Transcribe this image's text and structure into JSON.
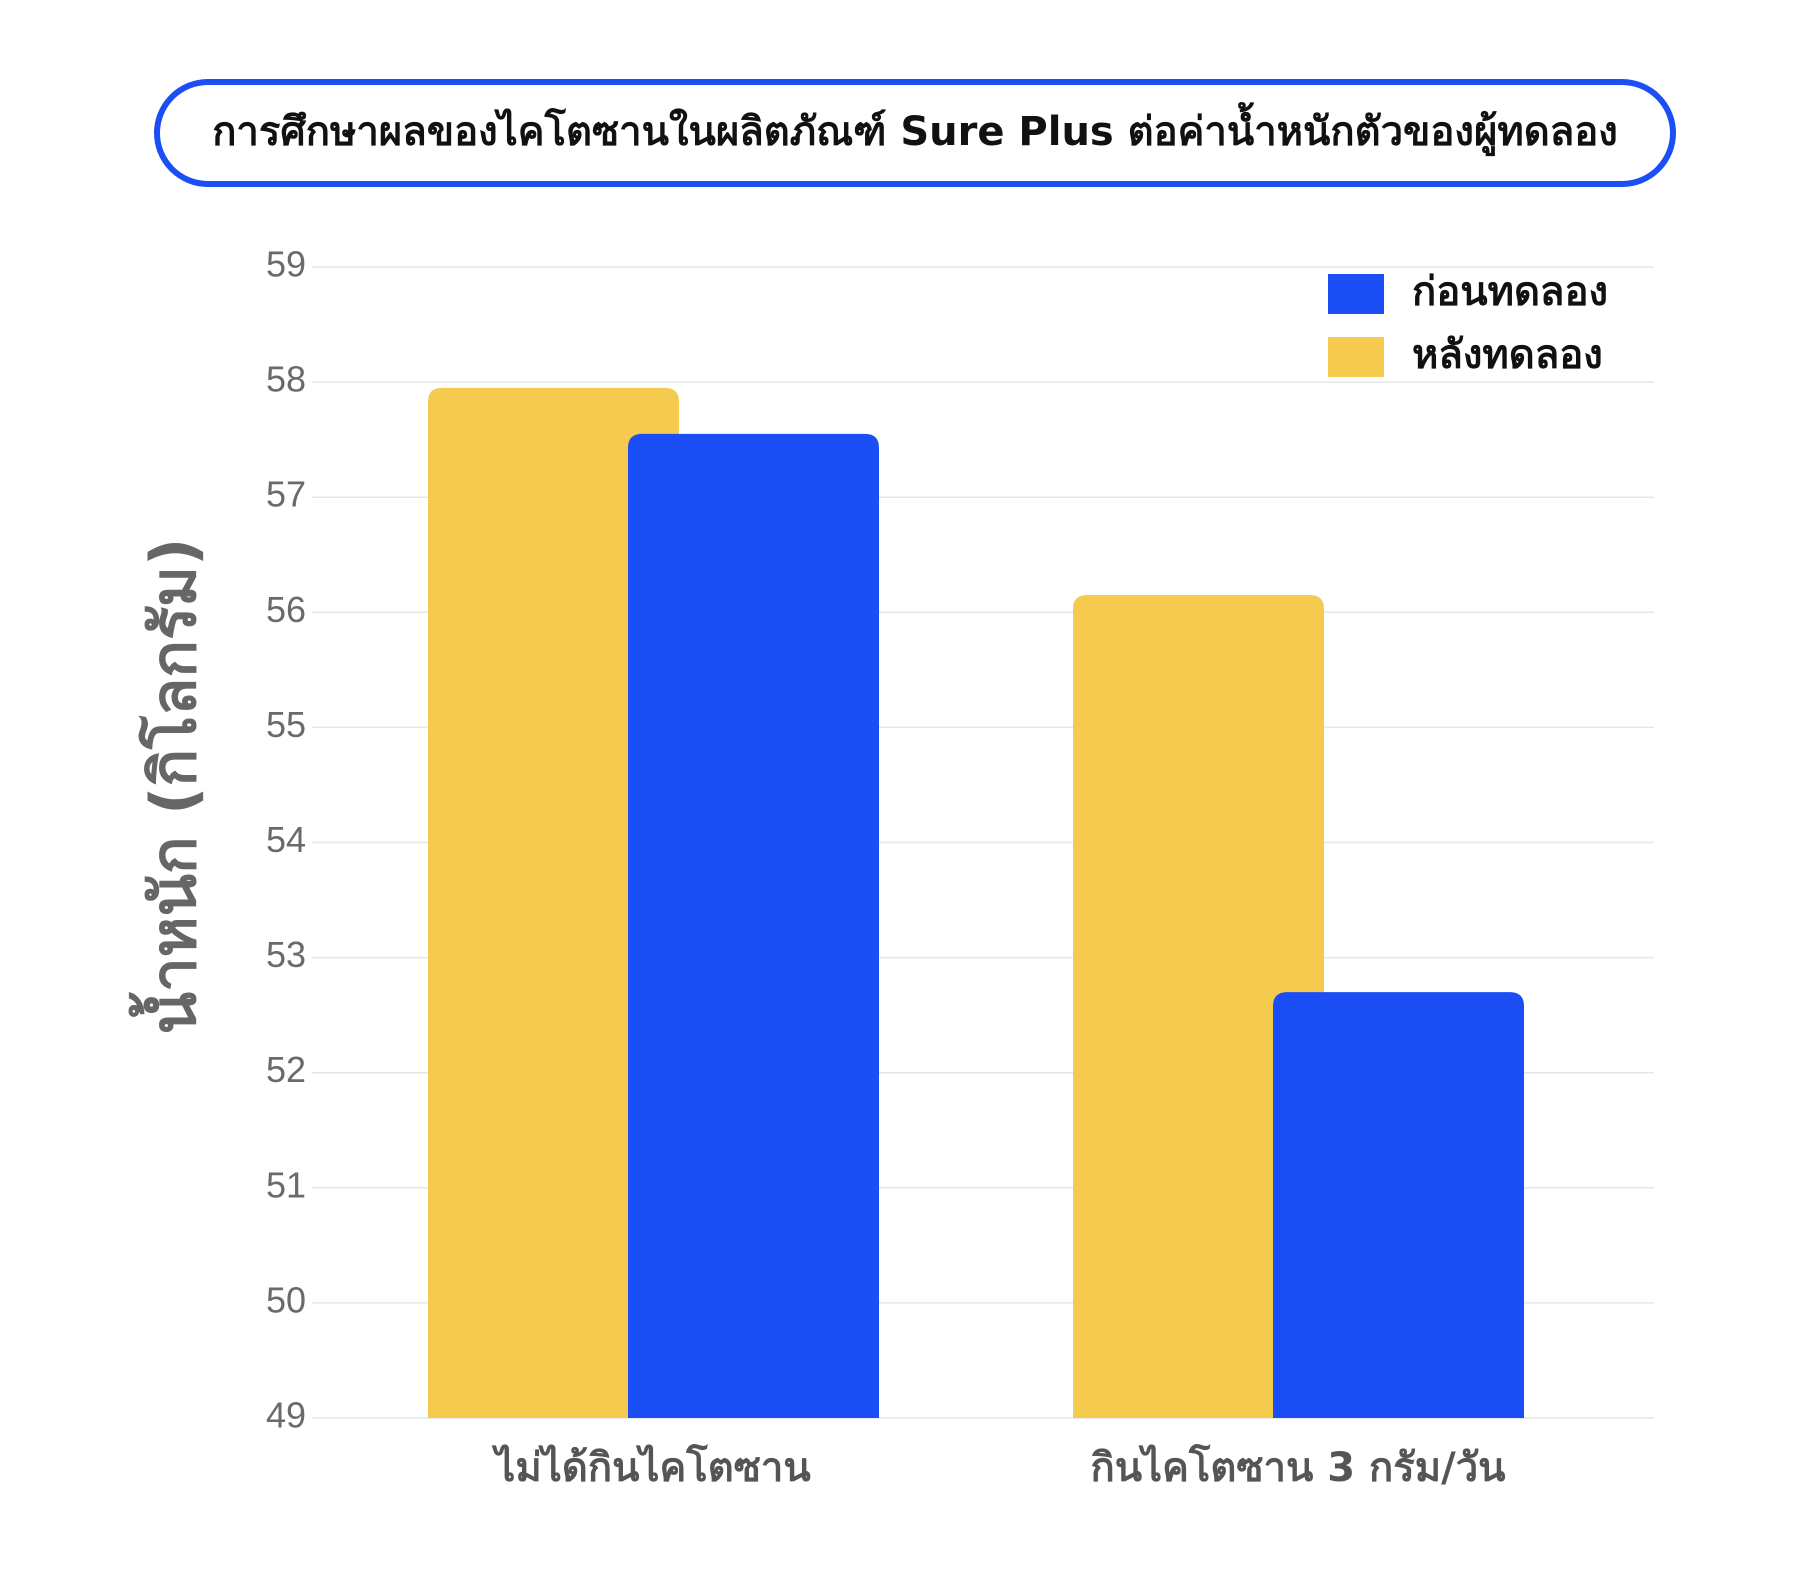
{
  "chart_data": {
    "type": "bar",
    "title": "การศึกษาผลของไคโตซานในผลิตภัณฑ์ Sure Plus ต่อค่าน้ำหนักตัวของผู้ทดลอง",
    "y_label": "น้ำหนัก (กิโลกรัม)",
    "categories": [
      "ไม่ได้กินไคโตซาน",
      "กินไคโตซาน 3 กรัม/วัน"
    ],
    "series": [
      {
        "name": "ก่อนทดลอง",
        "color": "#1c4ef5",
        "values": [
          57.55,
          52.7
        ]
      },
      {
        "name": "หลังทดลอง",
        "color": "#f5cb4f",
        "values": [
          57.95,
          56.15
        ]
      }
    ],
    "ylim": [
      49,
      59
    ],
    "yticks": [
      49,
      50,
      51,
      52,
      53,
      54,
      55,
      56,
      57,
      58,
      59
    ],
    "grid": true,
    "legend": "top-right"
  }
}
